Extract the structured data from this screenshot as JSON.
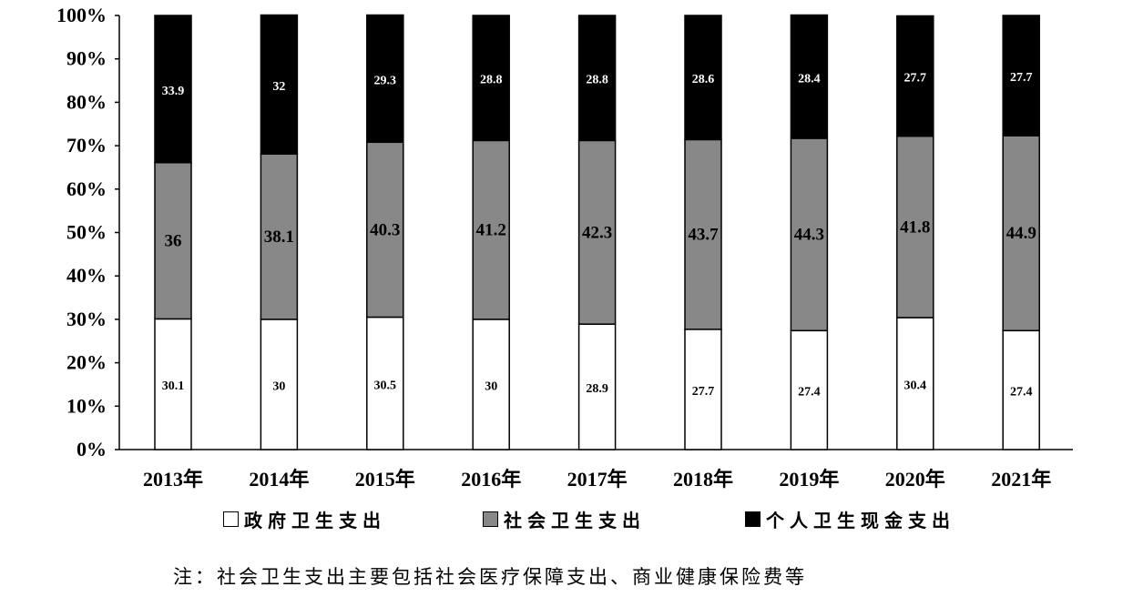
{
  "chart_data": {
    "type": "bar",
    "stacked": true,
    "categories": [
      "2013年",
      "2014年",
      "2015年",
      "2016年",
      "2017年",
      "2018年",
      "2019年",
      "2020年",
      "2021年"
    ],
    "series": [
      {
        "name": "政府卫生支出",
        "color": "#ffffff",
        "label_color": "#000000",
        "values": [
          30.1,
          30,
          30.5,
          30,
          28.9,
          27.7,
          27.4,
          30.4,
          27.4
        ]
      },
      {
        "name": "社会卫生支出",
        "color": "#888888",
        "label_color": "#000000",
        "values": [
          36,
          38.1,
          40.3,
          41.2,
          42.3,
          43.7,
          44.3,
          41.8,
          44.9
        ]
      },
      {
        "name": "个人卫生现金支出",
        "color": "#000000",
        "label_color": "#ffffff",
        "values": [
          33.9,
          32,
          29.3,
          28.8,
          28.8,
          28.6,
          28.4,
          27.7,
          27.7
        ]
      }
    ],
    "y_ticks": [
      "0%",
      "10%",
      "20%",
      "30%",
      "40%",
      "50%",
      "60%",
      "70%",
      "80%",
      "90%",
      "100%"
    ],
    "ylim": [
      0,
      100
    ],
    "grid": false,
    "legend_position": "bottom",
    "note": "注：社会卫生支出主要包括社会医疗保障支出、商业健康保险费等"
  }
}
